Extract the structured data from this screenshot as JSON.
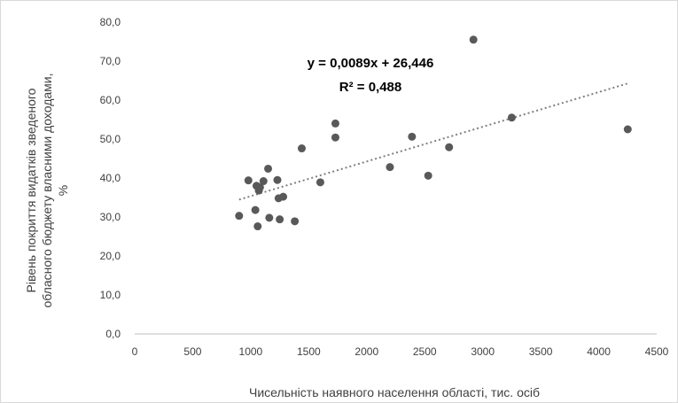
{
  "chart_data": {
    "type": "scatter",
    "title": "",
    "xlabel": "Чисельність наявного населення області, тис. осіб",
    "ylabel_lines": [
      "Рівень покриття видатків зведеного",
      "обласного бюджету власними доходами,",
      "%"
    ],
    "xlim": [
      0,
      4500
    ],
    "ylim": [
      0,
      80
    ],
    "x_ticks": [
      "0",
      "500",
      "1000",
      "1500",
      "2000",
      "2500",
      "3000",
      "3500",
      "4000",
      "4500"
    ],
    "y_ticks": [
      "0,0",
      "10,0",
      "20,0",
      "30,0",
      "40,0",
      "50,0",
      "60,0",
      "70,0",
      "80,0"
    ],
    "grid": false,
    "marker_color": "#595959",
    "trendline": {
      "style": "dotted",
      "slope": 0.0089,
      "intercept": 26.446,
      "x_range": [
        900,
        4250
      ],
      "equation": "y = 0,0089x + 26,446",
      "r2_label": "R² = 0,488"
    },
    "points": [
      {
        "x": 900,
        "y": 30.3
      },
      {
        "x": 980,
        "y": 39.4
      },
      {
        "x": 1040,
        "y": 31.8
      },
      {
        "x": 1050,
        "y": 38.0
      },
      {
        "x": 1060,
        "y": 27.6
      },
      {
        "x": 1070,
        "y": 36.8
      },
      {
        "x": 1080,
        "y": 37.6
      },
      {
        "x": 1110,
        "y": 39.2
      },
      {
        "x": 1150,
        "y": 42.4
      },
      {
        "x": 1160,
        "y": 29.8
      },
      {
        "x": 1230,
        "y": 39.5
      },
      {
        "x": 1240,
        "y": 34.8
      },
      {
        "x": 1250,
        "y": 29.4
      },
      {
        "x": 1280,
        "y": 35.2
      },
      {
        "x": 1380,
        "y": 28.9
      },
      {
        "x": 1440,
        "y": 47.6
      },
      {
        "x": 1600,
        "y": 38.9
      },
      {
        "x": 1730,
        "y": 54.0
      },
      {
        "x": 1730,
        "y": 50.4
      },
      {
        "x": 2200,
        "y": 42.8
      },
      {
        "x": 2390,
        "y": 50.6
      },
      {
        "x": 2530,
        "y": 40.6
      },
      {
        "x": 2710,
        "y": 47.9
      },
      {
        "x": 2920,
        "y": 75.5
      },
      {
        "x": 3250,
        "y": 55.5
      },
      {
        "x": 4250,
        "y": 52.5
      }
    ]
  }
}
